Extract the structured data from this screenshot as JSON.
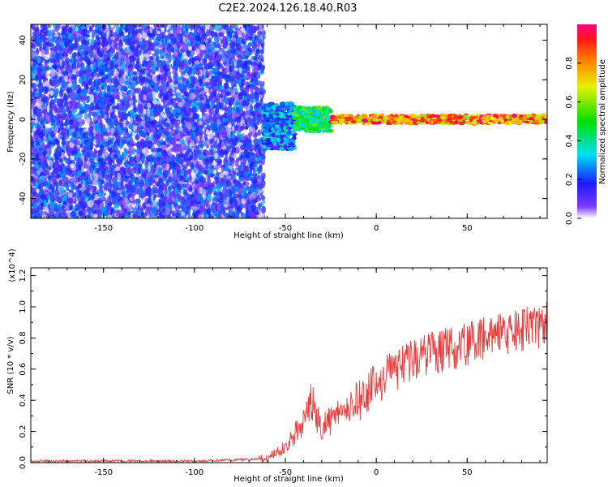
{
  "title": "C2E2.2024.126.18.40.R03",
  "chart_data": [
    {
      "type": "heatmap",
      "xlabel": "Height of straight line (km)",
      "ylabel": "Frequency (Hz)",
      "xlim": [
        -190,
        94
      ],
      "ylim": [
        -50,
        48
      ],
      "xticks": [
        "-150",
        "-100",
        "-50",
        "0",
        "50"
      ],
      "yticks": [
        "-40",
        "-20",
        "0",
        "20",
        "40"
      ],
      "colorbar": {
        "label": "Normalized spectral amplitude",
        "range": [
          0,
          1
        ],
        "ticks": [
          "0.0",
          "0.2",
          "0.4",
          "0.6",
          "0.8"
        ],
        "colormap": "rainbow"
      },
      "description_regions": [
        {
          "x_range": [
            -190,
            -62
          ],
          "y_range": [
            -50,
            48
          ],
          "amplitude_range": [
            0.0,
            0.3
          ]
        },
        {
          "x_range": [
            -62,
            -45
          ],
          "y_range": [
            -15,
            8
          ],
          "amplitude_range": [
            0.1,
            0.4
          ]
        },
        {
          "x_range": [
            -45,
            -25
          ],
          "y_range": [
            -6,
            6
          ],
          "amplitude_range": [
            0.3,
            0.6
          ]
        },
        {
          "x_range": [
            -25,
            94
          ],
          "y_range": [
            -2,
            2
          ],
          "amplitude_range": [
            0.6,
            1.0
          ]
        }
      ]
    },
    {
      "type": "line",
      "xlabel": "Height of straight line (km)",
      "ylabel": "SNR (10 * v/v)",
      "y_multiplier": "(x10^4)",
      "xlim": [
        -190,
        94
      ],
      "ylim": [
        0,
        1.25
      ],
      "xticks": [
        "-150",
        "-100",
        "-50",
        "0",
        "50"
      ],
      "yticks": [
        "0.0",
        "0.2",
        "0.4",
        "0.6",
        "0.8",
        "1.0",
        "1.2"
      ],
      "series": [
        {
          "color": "#e83a3a",
          "x": [
            -190,
            -150,
            -100,
            -70,
            -60,
            -55,
            -50,
            -45,
            -40,
            -36,
            -33,
            -30,
            -25,
            -20,
            -15,
            -10,
            -5,
            0,
            5,
            10,
            15,
            20,
            30,
            40,
            50,
            60,
            70,
            80,
            85,
            90,
            94
          ],
          "y": [
            0.01,
            0.01,
            0.01,
            0.02,
            0.03,
            0.06,
            0.1,
            0.18,
            0.25,
            0.4,
            0.3,
            0.22,
            0.28,
            0.3,
            0.35,
            0.4,
            0.45,
            0.5,
            0.55,
            0.58,
            0.62,
            0.66,
            0.7,
            0.73,
            0.76,
            0.8,
            0.82,
            0.85,
            0.88,
            0.86,
            0.9
          ]
        }
      ]
    }
  ]
}
